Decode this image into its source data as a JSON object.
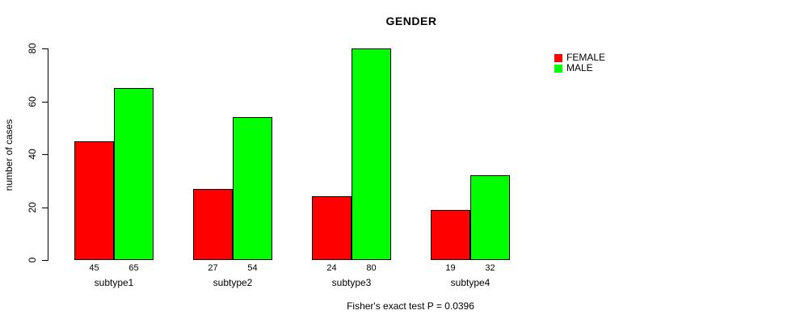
{
  "title": "GENDER",
  "footer": "Fisher's exact test P = 0.0396",
  "colors": {
    "female": "#FF0000",
    "male": "#00FF00",
    "axis": "#000000",
    "background": "#FFFFFF"
  },
  "legend": {
    "position": "right",
    "items": [
      {
        "label": "FEMALE",
        "color": "#FF0000"
      },
      {
        "label": "MALE",
        "color": "#00FF00"
      }
    ]
  },
  "chart_data": {
    "type": "bar",
    "title": "GENDER",
    "xlabel": "",
    "ylabel": "number of cases",
    "categories": [
      "subtype1",
      "subtype2",
      "subtype3",
      "subtype4"
    ],
    "series": [
      {
        "name": "FEMALE",
        "color": "#FF0000",
        "values": [
          45,
          27,
          24,
          19
        ]
      },
      {
        "name": "MALE",
        "color": "#00FF00",
        "values": [
          65,
          54,
          80,
          32
        ]
      }
    ],
    "bar_value_labels": [
      [
        "45",
        "65"
      ],
      [
        "27",
        "54"
      ],
      [
        "24",
        "80"
      ],
      [
        "19",
        "32"
      ]
    ],
    "ylim": [
      0,
      80
    ],
    "yticks": [
      0,
      20,
      40,
      60,
      80
    ],
    "grid": false,
    "legend_position": "right",
    "annotation": "Fisher's exact test P = 0.0396"
  }
}
